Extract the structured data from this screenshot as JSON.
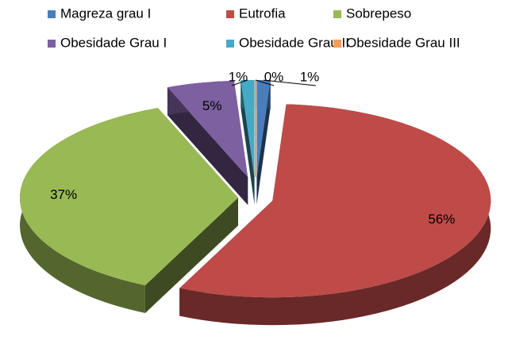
{
  "chart_data": {
    "type": "pie",
    "categories": [
      "Magreza grau I",
      "Eutrofia",
      "Sobrepeso",
      "Obesidade Grau I",
      "Obesidade Grau II",
      "Obesidade Grau III"
    ],
    "values": [
      1,
      56,
      37,
      5,
      1,
      0
    ],
    "value_labels": [
      "1%",
      "56%",
      "37%",
      "5%",
      "1%",
      "0%"
    ],
    "colors": [
      "#4a7ebb",
      "#be4b48",
      "#98b954",
      "#7d60a0",
      "#46aac5",
      "#f59d56"
    ],
    "legend": "top"
  }
}
